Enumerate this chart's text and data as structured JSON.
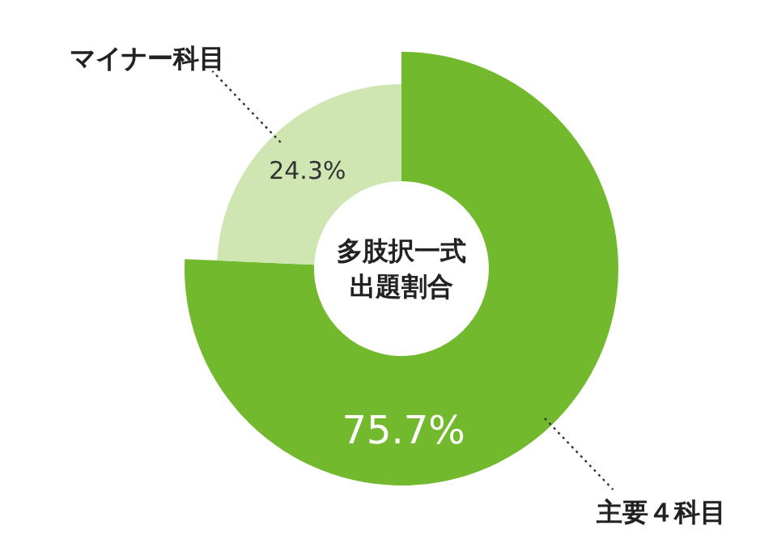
{
  "chart_data": {
    "type": "donut",
    "annotations": [
      "多肢択一式",
      "出題割合"
    ],
    "categories": [
      "主要４科目",
      "マイナー科目"
    ],
    "values": [
      75.7,
      24.3
    ],
    "colors": [
      "#72b92e",
      "#cfe5b2"
    ],
    "value_labels": [
      "75.7%",
      "24.3%"
    ]
  }
}
